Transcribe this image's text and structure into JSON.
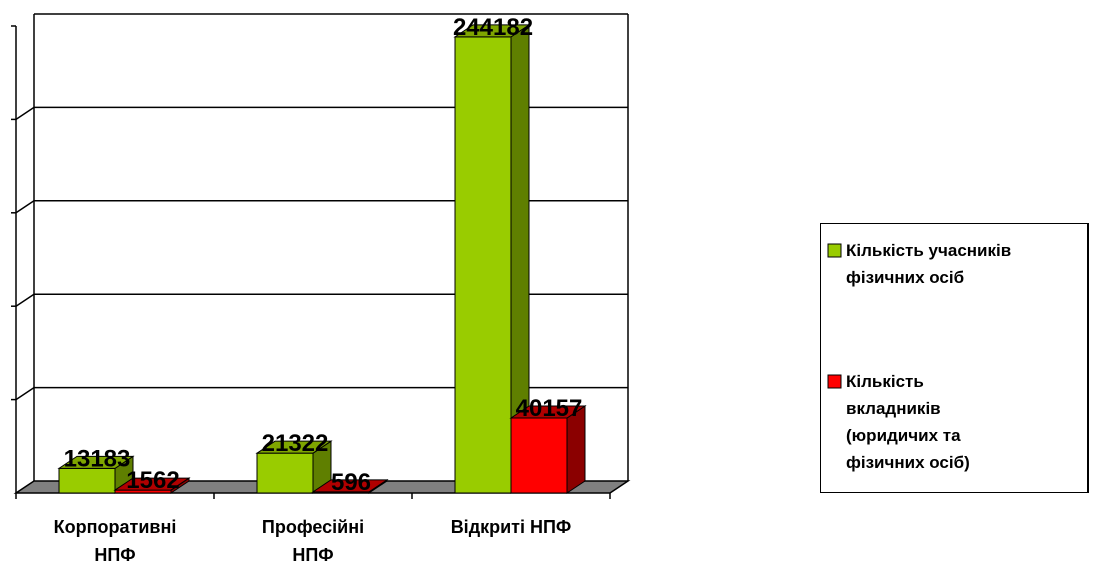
{
  "chart_data": {
    "type": "bar",
    "categories": [
      [
        "Корпоративні",
        "НПФ"
      ],
      [
        "Професійні",
        "НПФ"
      ],
      [
        "Відкриті НПФ"
      ]
    ],
    "series": [
      {
        "name": [
          "Кількість учасників",
          "фізичних осіб"
        ],
        "values": [
          13183,
          21322,
          244182
        ],
        "color": "#99CC00",
        "side_color": "#5F7F00",
        "top_color": "#7FA600"
      },
      {
        "name": [
          "Кількість",
          "вкладників",
          "(юридичих та",
          "фізичних осіб)"
        ],
        "values": [
          1562,
          596,
          40157
        ],
        "color": "#FF0000",
        "side_color": "#8B0000",
        "top_color": "#B00000"
      }
    ],
    "data_labels": [
      "13183",
      "1562",
      "21322",
      "596",
      "244182",
      "40157"
    ],
    "ylim": [
      0,
      250000
    ],
    "grid": true,
    "legend_position": "right",
    "style": "3d-bar",
    "frame_color": "#000000",
    "floor_color": "#808080"
  }
}
